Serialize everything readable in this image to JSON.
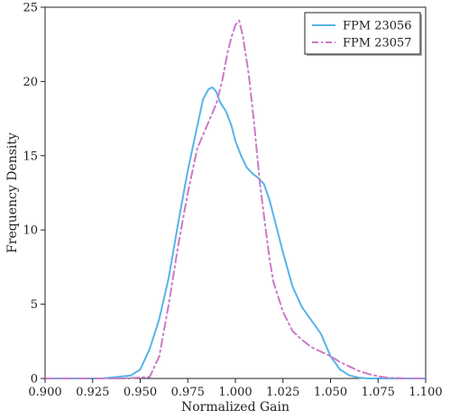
{
  "chart_data": {
    "type": "line",
    "title": "",
    "xlabel": "Normalized Gain",
    "ylabel": "Frequency Density",
    "xlim": [
      0.9,
      1.1
    ],
    "ylim": [
      0,
      25
    ],
    "xticks": [
      "0.900",
      "0.925",
      "0.950",
      "0.975",
      "1.000",
      "1.025",
      "1.050",
      "1.075",
      "1.100"
    ],
    "yticks": [
      "0",
      "5",
      "10",
      "15",
      "20",
      "25"
    ],
    "grid": false,
    "legend_position": "top-right",
    "series": [
      {
        "name": "FPM 23056",
        "color": "#56b4e9",
        "dash": "solid",
        "x": [
          0.9,
          0.93,
          0.945,
          0.95,
          0.955,
          0.96,
          0.965,
          0.97,
          0.975,
          0.98,
          0.983,
          0.986,
          0.988,
          0.99,
          0.992,
          0.995,
          0.998,
          1.0,
          1.003,
          1.006,
          1.009,
          1.012,
          1.015,
          1.018,
          1.02,
          1.025,
          1.03,
          1.035,
          1.04,
          1.045,
          1.05,
          1.055,
          1.06,
          1.065,
          1.07,
          1.1
        ],
        "y": [
          0,
          0,
          0.2,
          0.6,
          2.0,
          4.0,
          6.8,
          10.5,
          14.0,
          17.0,
          18.8,
          19.5,
          19.6,
          19.3,
          18.6,
          18.0,
          17.0,
          16.0,
          15.0,
          14.2,
          13.8,
          13.5,
          13.1,
          12.0,
          11.0,
          8.5,
          6.2,
          4.8,
          3.9,
          3.0,
          1.5,
          0.6,
          0.2,
          0.05,
          0,
          0
        ]
      },
      {
        "name": "FPM 23057",
        "color": "#cc79c7",
        "dash": "dashdot",
        "x": [
          0.9,
          0.94,
          0.955,
          0.96,
          0.965,
          0.97,
          0.975,
          0.98,
          0.985,
          0.99,
          0.993,
          0.996,
          0.998,
          1.0,
          1.002,
          1.004,
          1.007,
          1.01,
          1.013,
          1.016,
          1.018,
          1.02,
          1.025,
          1.03,
          1.035,
          1.04,
          1.045,
          1.05,
          1.055,
          1.06,
          1.065,
          1.07,
          1.075,
          1.08,
          1.09,
          1.1
        ],
        "y": [
          0,
          0,
          0.1,
          1.5,
          5.0,
          9.0,
          12.5,
          15.5,
          17.0,
          18.5,
          20.0,
          22.0,
          23.0,
          23.8,
          24.1,
          23.0,
          20.5,
          17.0,
          13.0,
          10.0,
          8.0,
          6.5,
          4.5,
          3.2,
          2.6,
          2.1,
          1.8,
          1.5,
          1.1,
          0.8,
          0.5,
          0.3,
          0.15,
          0.05,
          0,
          0
        ]
      }
    ]
  }
}
